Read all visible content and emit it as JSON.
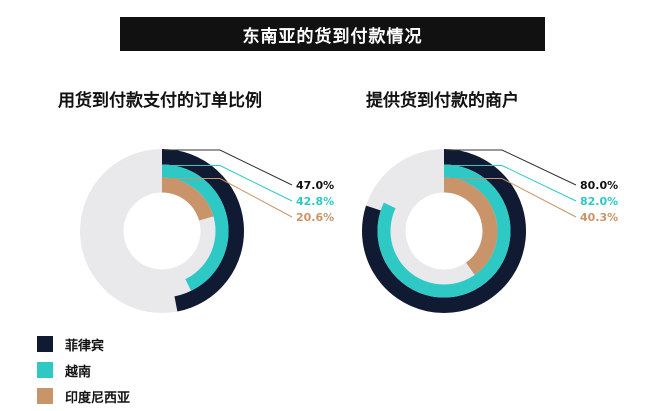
{
  "title": "东南亚的货到付款情况",
  "colors": {
    "philippines": "#101a33",
    "vietnam": "#2ec9c5",
    "indonesia": "#c9946a",
    "track": "#e9e9ec",
    "leader": "#555555"
  },
  "legend": [
    {
      "label": "菲律宾",
      "color": "#101a33"
    },
    {
      "label": "越南",
      "color": "#2ec9c5"
    },
    {
      "label": "印度尼西亚",
      "color": "#c9946a"
    }
  ],
  "chart_data": [
    {
      "type": "radial-bar",
      "title": "用货到付款支付的订单比例",
      "series": [
        {
          "name": "菲律宾",
          "value": 47.0,
          "label": "47.0%"
        },
        {
          "name": "越南",
          "value": 42.8,
          "label": "42.8%"
        },
        {
          "name": "印度尼西亚",
          "value": 20.6,
          "label": "20.6%"
        }
      ]
    },
    {
      "type": "radial-bar",
      "title": "提供货到付款的商户",
      "series": [
        {
          "name": "菲律宾",
          "value": 80.0,
          "label": "80.0%"
        },
        {
          "name": "越南",
          "value": 82.0,
          "label": "82.0%"
        },
        {
          "name": "印度尼西亚",
          "value": 40.3,
          "label": "40.3%"
        }
      ]
    }
  ]
}
